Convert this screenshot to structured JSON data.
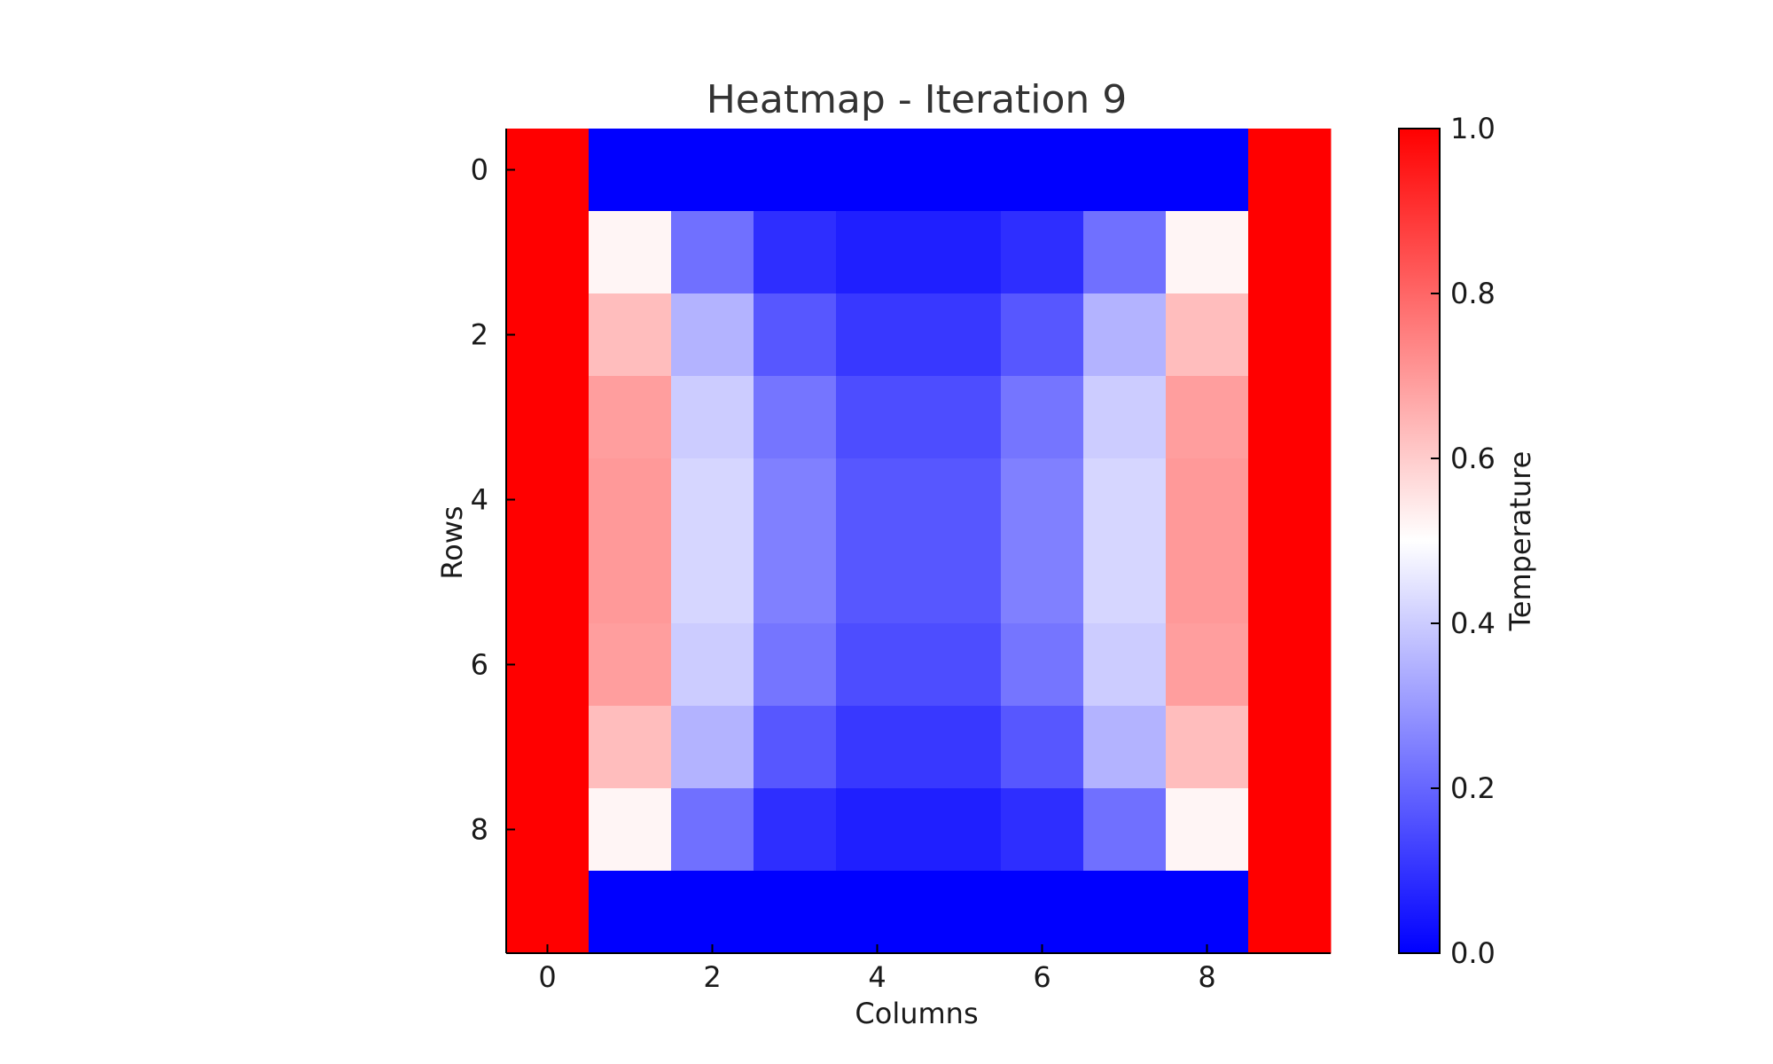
{
  "chart_data": {
    "type": "heatmap",
    "title": "Heatmap - Iteration 9",
    "xlabel": "Columns",
    "ylabel": "Rows",
    "colorbar_label": "Temperature",
    "colormap": "bwr",
    "vmin": 0.0,
    "vmax": 1.0,
    "x_ticks": [
      0,
      2,
      4,
      6,
      8
    ],
    "x_tick_labels": [
      "0",
      "2",
      "4",
      "6",
      "8"
    ],
    "y_ticks": [
      0,
      2,
      4,
      6,
      8
    ],
    "y_tick_labels": [
      "0",
      "2",
      "4",
      "6",
      "8"
    ],
    "colorbar_ticks": [
      0.0,
      0.2,
      0.4,
      0.6,
      0.8,
      1.0
    ],
    "colorbar_tick_labels": [
      "0.0",
      "0.2",
      "0.4",
      "0.6",
      "0.8",
      "1.0"
    ],
    "rows": 10,
    "cols": 10,
    "values": [
      [
        1.0,
        0.0,
        0.0,
        0.0,
        0.0,
        0.0,
        0.0,
        0.0,
        0.0,
        1.0
      ],
      [
        1.0,
        0.52,
        0.22,
        0.09,
        0.06,
        0.06,
        0.09,
        0.22,
        0.52,
        1.0
      ],
      [
        1.0,
        0.63,
        0.35,
        0.17,
        0.11,
        0.11,
        0.17,
        0.35,
        0.63,
        1.0
      ],
      [
        1.0,
        0.69,
        0.4,
        0.23,
        0.15,
        0.15,
        0.23,
        0.4,
        0.69,
        1.0
      ],
      [
        1.0,
        0.7,
        0.42,
        0.25,
        0.17,
        0.17,
        0.25,
        0.42,
        0.7,
        1.0
      ],
      [
        1.0,
        0.7,
        0.42,
        0.25,
        0.17,
        0.17,
        0.25,
        0.42,
        0.7,
        1.0
      ],
      [
        1.0,
        0.69,
        0.4,
        0.23,
        0.15,
        0.15,
        0.23,
        0.4,
        0.69,
        1.0
      ],
      [
        1.0,
        0.63,
        0.35,
        0.17,
        0.11,
        0.11,
        0.17,
        0.35,
        0.63,
        1.0
      ],
      [
        1.0,
        0.52,
        0.22,
        0.09,
        0.06,
        0.06,
        0.09,
        0.22,
        0.52,
        1.0
      ],
      [
        1.0,
        0.0,
        0.0,
        0.0,
        0.0,
        0.0,
        0.0,
        0.0,
        0.0,
        1.0
      ]
    ]
  }
}
